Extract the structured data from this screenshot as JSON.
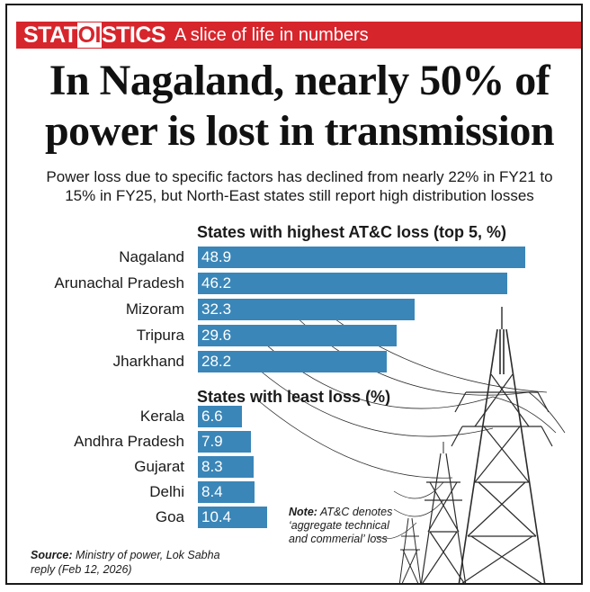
{
  "header": {
    "brand_part1": "STAT",
    "brand_part2": "OI",
    "brand_part3": "STICS",
    "tagline": "A slice of life in numbers"
  },
  "headline": {
    "line1": "In Nagaland, nearly 50% of",
    "line2": "power is lost in transmission"
  },
  "subtitle": {
    "line1": "Power loss due to specific factors has declined from nearly 22% in FY21 to",
    "line2": "15% in FY25, but North-East states still report high distribution losses"
  },
  "chart_data": [
    {
      "type": "bar",
      "orientation": "horizontal",
      "title": "States with highest AT&C loss (top 5, %)",
      "categories": [
        "Nagaland",
        "Arunachal Pradesh",
        "Mizoram",
        "Tripura",
        "Jharkhand"
      ],
      "values": [
        48.9,
        46.2,
        32.3,
        29.6,
        28.2
      ],
      "value_labels": [
        "48.9",
        "46.2",
        "32.3",
        "29.6",
        "28.2"
      ],
      "color": "#3a86b8"
    },
    {
      "type": "bar",
      "orientation": "horizontal",
      "title": "States with least loss (%)",
      "categories": [
        "Kerala",
        "Andhra Pradesh",
        "Gujarat",
        "Delhi",
        "Goa"
      ],
      "values": [
        6.6,
        7.9,
        8.3,
        8.4,
        10.4
      ],
      "value_labels": [
        "6.6",
        "7.9",
        "8.3",
        "8.4",
        "10.4"
      ],
      "color": "#3a86b8"
    }
  ],
  "note": {
    "label": "Note:",
    "text": "AT&C denotes ‘aggregate technical and commerial’ loss"
  },
  "source": {
    "label": "Source:",
    "text": "Ministry of power, Lok Sabha reply (Feb 12, 2026)"
  },
  "colors": {
    "banner": "#d7252c",
    "bar": "#3a86b8"
  }
}
